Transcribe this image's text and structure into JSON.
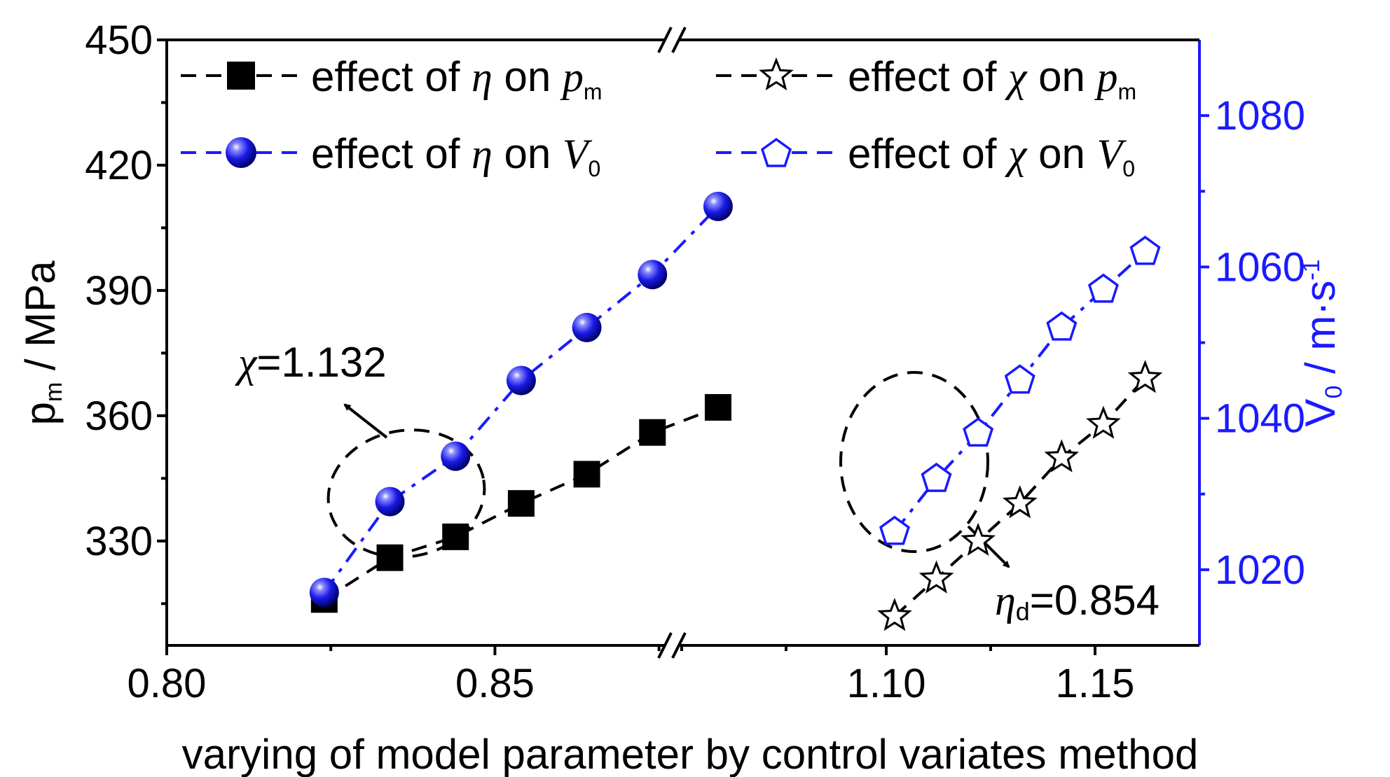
{
  "chart_data": {
    "type": "scatter",
    "xlabel": "varying of model parameter by control variates method",
    "ylabel_left": {
      "base": "p",
      "sub": "m",
      "rest": " / MPa"
    },
    "ylabel_right": {
      "base": "V",
      "sub": "0",
      "rest": " / m·s",
      "sup": "-1"
    },
    "x_segments": [
      {
        "xlim": [
          0.8,
          0.876
        ],
        "ticks": [
          "0.80",
          "0.85"
        ],
        "tick_values": [
          0.8,
          0.85
        ]
      },
      {
        "xlim": [
          1.0505,
          1.175
        ],
        "ticks": [
          "1.10",
          "1.15"
        ],
        "tick_values": [
          1.1,
          1.15
        ]
      }
    ],
    "ylim_left": [
      305,
      450
    ],
    "yticks_left": [
      "330",
      "360",
      "390",
      "420",
      "450"
    ],
    "ylim_right": [
      1010,
      1090
    ],
    "yticks_right": [
      "1020",
      "1040",
      "1060",
      "1080"
    ],
    "axis_break": true,
    "legend": [
      {
        "prefix": "effect of ",
        "param": "η",
        "mid": " on ",
        "target": "p",
        "sub": "m"
      },
      {
        "prefix": "effect of ",
        "param": "χ",
        "mid": " on ",
        "target": "p",
        "sub": "m"
      },
      {
        "prefix": "effect of ",
        "param": "η",
        "mid": " on ",
        "target": "V",
        "sub": "0"
      },
      {
        "prefix": "effect of ",
        "param": "χ",
        "mid": " on ",
        "target": "V",
        "sub": "0"
      }
    ],
    "annotations": [
      {
        "symbol": "χ",
        "sub": "",
        "text": "=1.132"
      },
      {
        "symbol": "η",
        "sub": "d",
        "text": "=0.854"
      }
    ],
    "series": [
      {
        "marker": "square",
        "color": "#000000",
        "axis": "left",
        "x": [
          0.824,
          0.834,
          0.844,
          0.854,
          0.864,
          0.874,
          0.884
        ],
        "y": [
          316,
          326,
          331,
          339,
          346,
          356,
          362
        ]
      },
      {
        "marker": "ball",
        "color": "#1a1aff",
        "axis": "right",
        "x": [
          0.824,
          0.834,
          0.844,
          0.854,
          0.864,
          0.874,
          0.884
        ],
        "y": [
          1017,
          1029,
          1035,
          1045,
          1052,
          1059,
          1068
        ]
      },
      {
        "marker": "star",
        "color": "#000000",
        "axis": "left",
        "x": [
          1.102,
          1.112,
          1.122,
          1.132,
          1.142,
          1.152,
          1.162
        ],
        "y": [
          312,
          321,
          330,
          339,
          350,
          358,
          369
        ]
      },
      {
        "marker": "pentagon",
        "color": "#1a1aff",
        "axis": "right",
        "x": [
          1.102,
          1.112,
          1.122,
          1.132,
          1.142,
          1.152,
          1.162
        ],
        "y": [
          1025,
          1032,
          1038,
          1045,
          1052,
          1057,
          1062
        ]
      }
    ]
  }
}
